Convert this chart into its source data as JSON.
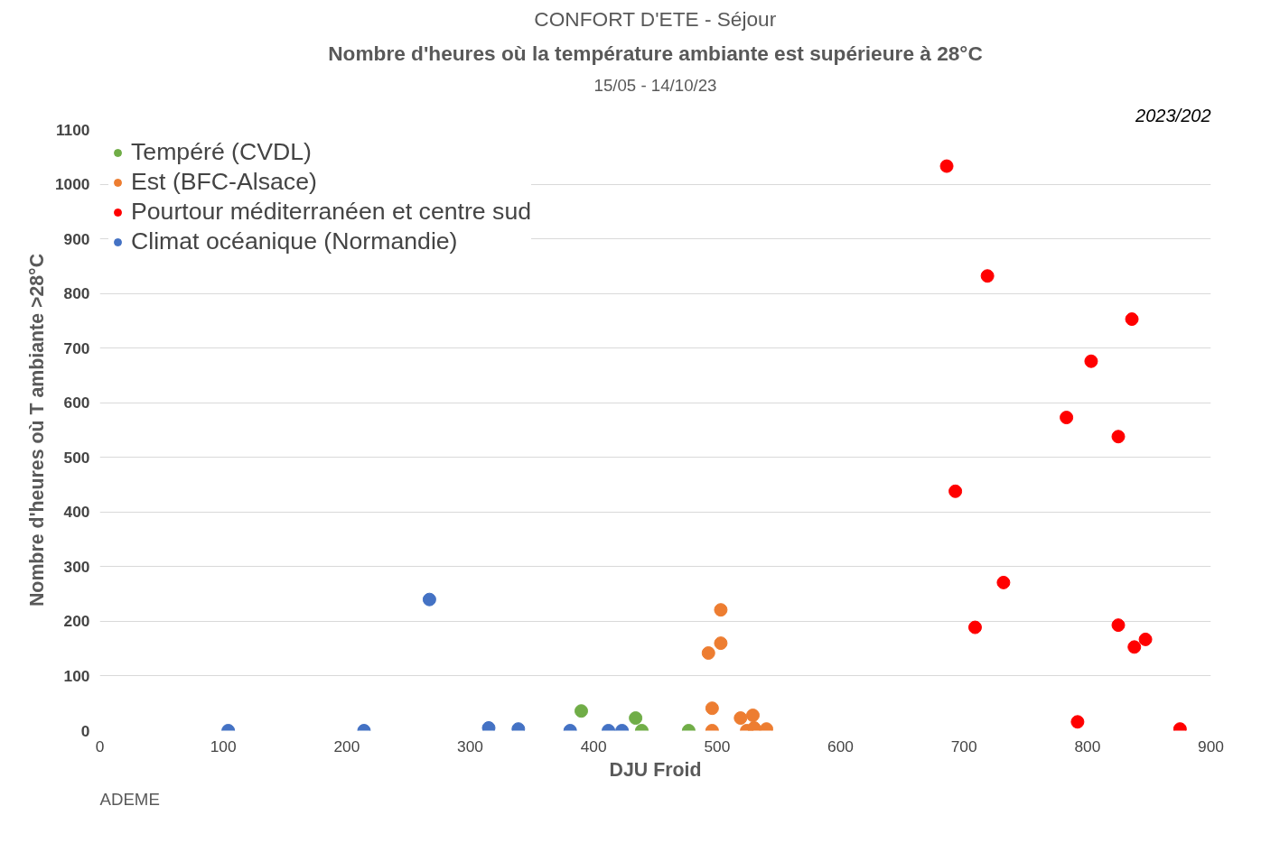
{
  "chart_data": {
    "type": "scatter",
    "title": "CONFORT D'ETE - Séjour",
    "subtitle": "Nombre d'heures où la température ambiante est supérieure à 28°C",
    "xlabel": "DJU Froid",
    "ylabel": "Nombre d'heures où T ambiante >28°C",
    "annotations": [
      "15/05 - 14/10/23",
      "2023/202",
      "ADEME"
    ],
    "series": [
      {
        "name": "Tempéré (CVDL)",
        "color": "#70ad47",
        "x": [
          390,
          434,
          439,
          477
        ],
        "values": [
          36,
          23,
          0,
          0
        ]
      },
      {
        "name": "Est (BFC-Alsace)",
        "color": "#ed7d31",
        "x": [
          493,
          503,
          503,
          496,
          496,
          519,
          529,
          524,
          530,
          540
        ],
        "values": [
          142,
          160,
          221,
          41,
          0,
          23,
          28,
          0,
          5,
          3
        ]
      },
      {
        "name": "Pourtour méditerranéen et centre sud",
        "color": "#ff0000",
        "x": [
          686,
          719,
          836,
          803,
          783,
          825,
          693,
          732,
          709,
          825,
          838,
          847,
          792,
          875
        ],
        "values": [
          1033,
          832,
          753,
          676,
          573,
          538,
          438,
          271,
          189,
          193,
          153,
          167,
          16,
          3
        ]
      },
      {
        "name": "Climat océanique (Normandie)",
        "color": "#4472c4",
        "x": [
          104,
          214,
          267,
          315,
          339,
          381,
          412,
          423
        ],
        "values": [
          0,
          0,
          240,
          5,
          3,
          0,
          0,
          0
        ]
      }
    ],
    "xlim": [
      0,
      900
    ],
    "xticks": [
      0,
      100,
      200,
      300,
      400,
      500,
      600,
      700,
      800,
      900
    ],
    "ylim": [
      0,
      1100
    ],
    "yticks": [
      0,
      100,
      200,
      300,
      400,
      500,
      600,
      700,
      800,
      900,
      1000,
      1100
    ],
    "grid": "y",
    "legend": "top left",
    "marker": "circle"
  }
}
